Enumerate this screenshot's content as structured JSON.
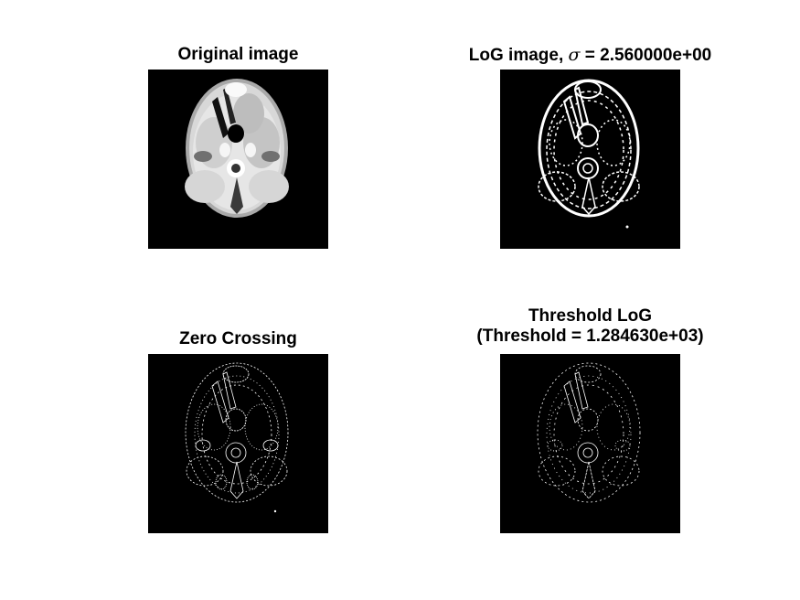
{
  "figure": {
    "background": "#ffffff",
    "panel_background": "#000000"
  },
  "panels": [
    {
      "title": "Original image",
      "image": "ct-brain-axial-grayscale"
    },
    {
      "title_prefix": "LoG image, ",
      "title_symbol": "σ",
      "title_suffix": " = 2.560000e+00",
      "image": "log-filtered-brain"
    },
    {
      "title": "Zero Crossing",
      "image": "zero-crossing-edges"
    },
    {
      "title_line1": "Threshold LoG",
      "title_line2": "(Threshold = 1.284630e+03)",
      "image": "thresholded-log-edges"
    }
  ]
}
